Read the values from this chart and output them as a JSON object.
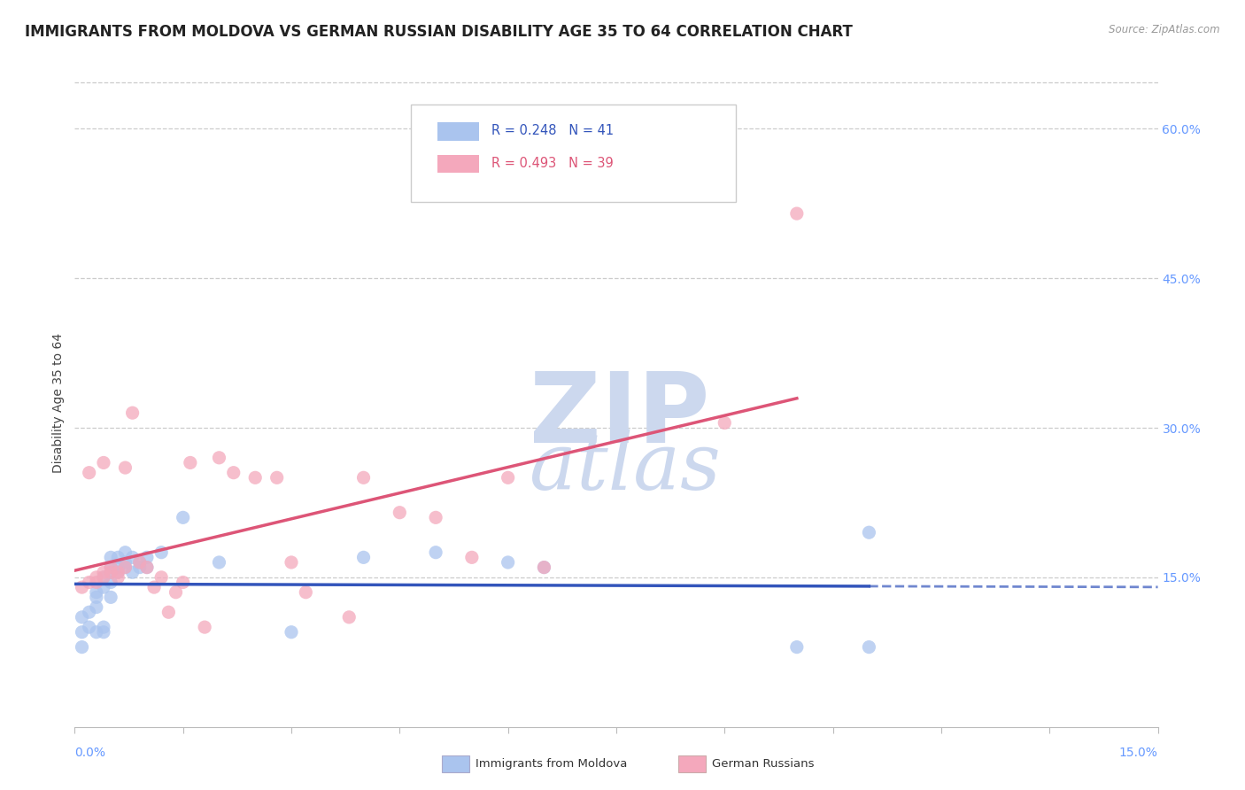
{
  "title": "IMMIGRANTS FROM MOLDOVA VS GERMAN RUSSIAN DISABILITY AGE 35 TO 64 CORRELATION CHART",
  "source": "Source: ZipAtlas.com",
  "ylabel": "Disability Age 35 to 64",
  "right_yticks": [
    0.15,
    0.3,
    0.45,
    0.6
  ],
  "right_yticklabels": [
    "15.0%",
    "30.0%",
    "45.0%",
    "60.0%"
  ],
  "xlim": [
    0.0,
    0.15
  ],
  "ylim": [
    0.0,
    0.65
  ],
  "blue_color": "#aac4ee",
  "pink_color": "#f4a8bc",
  "blue_line_color": "#3355bb",
  "pink_line_color": "#dd5577",
  "blue_scatter_x": [
    0.001,
    0.001,
    0.001,
    0.002,
    0.002,
    0.003,
    0.003,
    0.003,
    0.003,
    0.004,
    0.004,
    0.004,
    0.004,
    0.005,
    0.005,
    0.005,
    0.005,
    0.005,
    0.006,
    0.006,
    0.006,
    0.007,
    0.007,
    0.007,
    0.008,
    0.008,
    0.009,
    0.009,
    0.01,
    0.01,
    0.012,
    0.015,
    0.02,
    0.03,
    0.04,
    0.05,
    0.06,
    0.065,
    0.11,
    0.11,
    0.1
  ],
  "blue_scatter_y": [
    0.095,
    0.11,
    0.08,
    0.1,
    0.115,
    0.095,
    0.12,
    0.13,
    0.135,
    0.095,
    0.1,
    0.14,
    0.15,
    0.13,
    0.145,
    0.155,
    0.16,
    0.17,
    0.155,
    0.16,
    0.17,
    0.16,
    0.165,
    0.175,
    0.155,
    0.17,
    0.16,
    0.165,
    0.16,
    0.17,
    0.175,
    0.21,
    0.165,
    0.095,
    0.17,
    0.175,
    0.165,
    0.16,
    0.195,
    0.08,
    0.08
  ],
  "pink_scatter_x": [
    0.001,
    0.002,
    0.002,
    0.003,
    0.003,
    0.004,
    0.004,
    0.004,
    0.005,
    0.005,
    0.006,
    0.006,
    0.007,
    0.007,
    0.008,
    0.009,
    0.01,
    0.011,
    0.012,
    0.013,
    0.014,
    0.015,
    0.016,
    0.018,
    0.02,
    0.022,
    0.025,
    0.028,
    0.03,
    0.032,
    0.038,
    0.04,
    0.045,
    0.05,
    0.055,
    0.065,
    0.09,
    0.1,
    0.06
  ],
  "pink_scatter_y": [
    0.14,
    0.145,
    0.255,
    0.145,
    0.15,
    0.15,
    0.155,
    0.265,
    0.155,
    0.16,
    0.15,
    0.155,
    0.26,
    0.16,
    0.315,
    0.165,
    0.16,
    0.14,
    0.15,
    0.115,
    0.135,
    0.145,
    0.265,
    0.1,
    0.27,
    0.255,
    0.25,
    0.25,
    0.165,
    0.135,
    0.11,
    0.25,
    0.215,
    0.21,
    0.17,
    0.16,
    0.305,
    0.515,
    0.25
  ],
  "background_color": "#ffffff",
  "grid_color": "#cccccc",
  "watermark_color": "#ccd8ee",
  "title_fontsize": 12,
  "axis_label_fontsize": 10,
  "tick_fontsize": 10,
  "legend_blue_text": "R = 0.248   N = 41",
  "legend_pink_text": "R = 0.493   N = 39",
  "legend_blue_r_color": "#3355bb",
  "legend_pink_r_color": "#dd5577",
  "bottom_legend_blue": "Immigrants from Moldova",
  "bottom_legend_pink": "German Russians"
}
